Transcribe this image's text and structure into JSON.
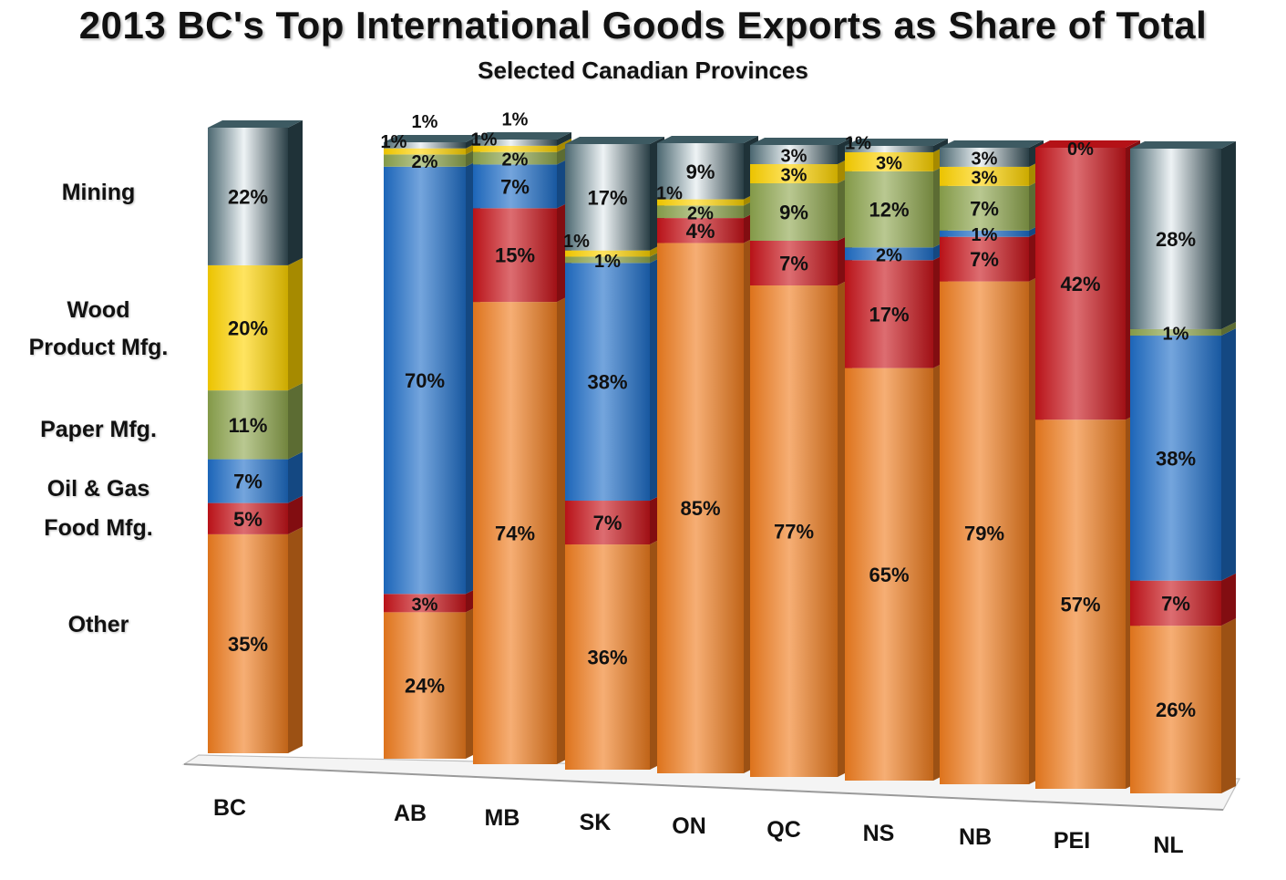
{
  "title": "2013 BC's Top International Goods Exports as Share of Total",
  "subtitle": "Selected Canadian Provinces",
  "category_labels": [
    {
      "key": "mining",
      "text": "Mining"
    },
    {
      "key": "wood_1",
      "text": "Wood"
    },
    {
      "key": "wood_2",
      "text": "Product Mfg."
    },
    {
      "key": "paper",
      "text": "Paper Mfg."
    },
    {
      "key": "oilgas",
      "text": "Oil & Gas"
    },
    {
      "key": "food",
      "text": "Food Mfg."
    },
    {
      "key": "other",
      "text": "Other"
    }
  ],
  "colors": {
    "Other": "#f07d1e",
    "Food Mfg.": "#c8141a",
    "Oil & Gas": "#1e6ec8",
    "Paper Mfg.": "#8ea64e",
    "Wood Product Mfg.": "#ffd400",
    "Mining": "#c8d6dc"
  },
  "chart_data": {
    "type": "bar",
    "stacked": true,
    "percent": true,
    "title": "2013 BC's Top International Goods Exports as Share of Total",
    "subtitle": "Selected Canadian Provinces",
    "categories": [
      "BC",
      "AB",
      "MB",
      "SK",
      "ON",
      "QC",
      "NS",
      "NB",
      "PEI",
      "NL"
    ],
    "series": [
      {
        "name": "Other",
        "values": [
          35,
          24,
          74,
          36,
          85,
          77,
          65,
          79,
          57,
          26
        ]
      },
      {
        "name": "Food Mfg.",
        "values": [
          5,
          3,
          15,
          7,
          4,
          7,
          17,
          7,
          42,
          7
        ]
      },
      {
        "name": "Oil & Gas",
        "values": [
          7,
          70,
          7,
          38,
          0,
          0,
          2,
          1,
          0,
          38
        ]
      },
      {
        "name": "Paper Mfg.",
        "values": [
          11,
          2,
          2,
          1,
          2,
          9,
          12,
          7,
          0,
          1
        ]
      },
      {
        "name": "Wood Product Mfg.",
        "values": [
          20,
          1,
          1,
          1,
          1,
          3,
          3,
          3,
          0,
          0
        ]
      },
      {
        "name": "Mining",
        "values": [
          22,
          1,
          1,
          17,
          9,
          3,
          1,
          3,
          0,
          28
        ]
      }
    ],
    "data_labels": [
      [
        "35%",
        "5%",
        "7%",
        "11%",
        "20%",
        "22%"
      ],
      [
        "24%",
        "3%",
        "70%",
        "2%",
        "1%",
        "1%"
      ],
      [
        "74%",
        "15%",
        "7%",
        "2%",
        "1%",
        "1%"
      ],
      [
        "36%",
        "7%",
        "38%",
        "1%",
        "1%",
        "17%"
      ],
      [
        "85%",
        "4%",
        "",
        "2%",
        "1%",
        "9%"
      ],
      [
        "77%",
        "7%",
        "",
        "9%",
        "3%",
        "3%"
      ],
      [
        "65%",
        "17%",
        "2%",
        "12%",
        "3%",
        "1%"
      ],
      [
        "79%",
        "7%",
        "1%",
        "7%",
        "3%",
        "3%"
      ],
      [
        "57%",
        "42%",
        "",
        "",
        "",
        "0%"
      ],
      [
        "26%",
        "7%",
        "38%",
        "1%",
        "",
        "28%"
      ]
    ],
    "ylim": [
      0,
      100
    ],
    "grid": false,
    "legend": "left"
  }
}
